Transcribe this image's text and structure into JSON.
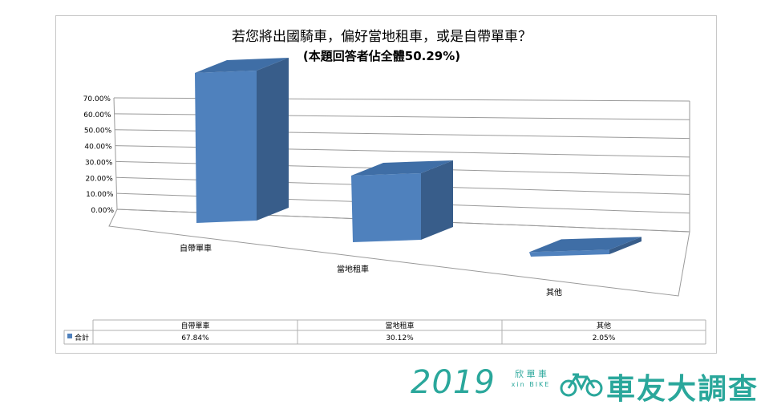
{
  "chart_data": {
    "type": "bar",
    "title": "若您將出國騎車，偏好當地租車，或是自帶單車？",
    "subtitle": "(本題回答者佔全體50.29%)",
    "categories": [
      "自帶單車",
      "當地租車",
      "其他"
    ],
    "series": [
      {
        "name": "合計",
        "values": [
          67.84,
          30.12,
          2.05
        ]
      }
    ],
    "value_labels": [
      "67.84%",
      "30.12%",
      "2.05%"
    ],
    "yticks": [
      "0.00%",
      "10.00%",
      "20.00%",
      "30.00%",
      "40.00%",
      "50.00%",
      "60.00%",
      "70.00%"
    ],
    "ylim": [
      0,
      70
    ],
    "grid": true,
    "style": "3d-column",
    "colors": {
      "front": "#4f81bd",
      "side": "#385d8a",
      "top": "#3f6ea6"
    }
  },
  "brand": {
    "year": "2019",
    "logo_top": "欣 單 車",
    "logo_sub": "xin BIKE",
    "title": "車友大調查",
    "color": "#2aa79b"
  }
}
